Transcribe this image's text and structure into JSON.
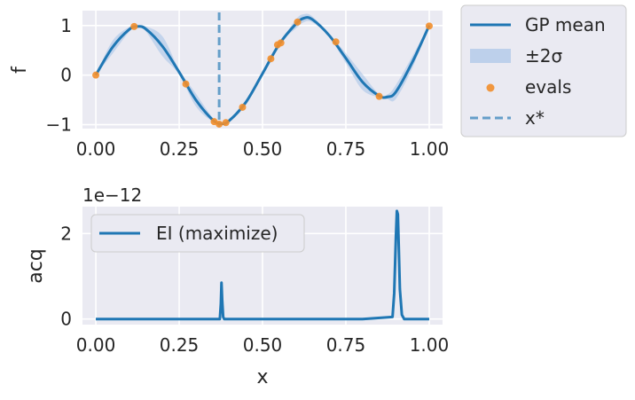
{
  "chart_data": [
    {
      "type": "line",
      "title": "",
      "xlabel": "",
      "ylabel": "f",
      "xlim": [
        -0.04,
        1.04
      ],
      "ylim": [
        -1.08,
        1.3
      ],
      "grid": true,
      "xticks": [
        0.0,
        0.25,
        0.5,
        0.75,
        1.0
      ],
      "xtick_labels": [
        "0.00",
        "0.25",
        "0.50",
        "0.75",
        "1.00"
      ],
      "yticks": [
        -1,
        0,
        1
      ],
      "ytick_labels": [
        "−1",
        "0",
        "1"
      ],
      "legend_placement": "outside-right-top",
      "legend": [
        {
          "key": "gp_mean",
          "label": "GP mean"
        },
        {
          "key": "band",
          "label": "±2σ"
        },
        {
          "key": "evals",
          "label": "evals"
        },
        {
          "key": "xstar",
          "label": "x*"
        }
      ],
      "series": [
        {
          "key": "gp_mean",
          "type": "line",
          "color": "#1f77b4",
          "x": [
            0.0,
            0.05,
            0.1,
            0.125,
            0.15,
            0.2,
            0.25,
            0.3,
            0.35,
            0.375,
            0.4,
            0.45,
            0.5,
            0.55,
            0.6,
            0.625,
            0.65,
            0.7,
            0.75,
            0.8,
            0.85,
            0.875,
            0.9,
            0.95,
            1.0
          ],
          "y": [
            0.0,
            0.56,
            0.92,
            0.98,
            0.93,
            0.58,
            0.06,
            -0.5,
            -0.9,
            -0.98,
            -0.92,
            -0.55,
            0.03,
            0.62,
            1.03,
            1.15,
            1.12,
            0.8,
            0.34,
            -0.14,
            -0.42,
            -0.44,
            -0.34,
            0.27,
            1.0
          ]
        },
        {
          "key": "band",
          "type": "area",
          "color": "#aec7e8",
          "x": [
            0.0,
            0.05,
            0.1,
            0.125,
            0.15,
            0.2,
            0.25,
            0.3,
            0.35,
            0.375,
            0.4,
            0.45,
            0.5,
            0.55,
            0.6,
            0.625,
            0.65,
            0.7,
            0.75,
            0.8,
            0.85,
            0.875,
            0.9,
            0.95,
            1.0
          ],
          "sigma2": [
            0.0,
            0.13,
            0.05,
            0.0,
            0.05,
            0.2,
            0.05,
            0.13,
            0.04,
            0.0,
            0.03,
            0.05,
            0.04,
            0.0,
            0.09,
            0.08,
            0.06,
            0.03,
            0.1,
            0.16,
            0.03,
            0.05,
            0.14,
            0.12,
            0.0
          ]
        },
        {
          "key": "evals",
          "type": "scatter",
          "color": "#f28e2b",
          "x": [
            0.0,
            0.115,
            0.27,
            0.355,
            0.37,
            0.39,
            0.44,
            0.525,
            0.545,
            0.555,
            0.605,
            0.72,
            0.85,
            1.0
          ],
          "y": [
            0.0,
            0.98,
            -0.18,
            -0.94,
            -0.99,
            -0.96,
            -0.65,
            0.33,
            0.61,
            0.65,
            1.07,
            0.67,
            -0.43,
            0.99
          ]
        },
        {
          "key": "xstar",
          "type": "vline",
          "color": "#1f77b4",
          "x": 0.37
        }
      ]
    },
    {
      "type": "line",
      "title": "",
      "xlabel": "x",
      "ylabel": "acq",
      "offset_text": "1e−12",
      "xlim": [
        -0.04,
        1.04
      ],
      "ylim": [
        -0.13,
        2.63
      ],
      "grid": true,
      "xticks": [
        0.0,
        0.25,
        0.5,
        0.75,
        1.0
      ],
      "xtick_labels": [
        "0.00",
        "0.25",
        "0.50",
        "0.75",
        "1.00"
      ],
      "yticks": [
        0,
        2
      ],
      "ytick_labels": [
        "0",
        "2"
      ],
      "legend_placement": "upper-left",
      "legend": [
        {
          "key": "ei",
          "label": "EI (maximize)"
        }
      ],
      "series": [
        {
          "key": "ei",
          "type": "line",
          "color": "#1f77b4",
          "x": [
            0.0,
            0.372,
            0.375,
            0.377,
            0.379,
            0.382,
            0.385,
            0.8,
            0.89,
            0.895,
            0.9,
            0.903,
            0.906,
            0.909,
            0.912,
            0.918,
            0.925,
            1.0
          ],
          "y": [
            0.0,
            0.0,
            0.35,
            0.85,
            0.45,
            0.05,
            0.0,
            0.0,
            0.05,
            0.6,
            1.9,
            2.53,
            2.45,
            1.6,
            0.7,
            0.1,
            0.0,
            0.0
          ]
        }
      ]
    }
  ]
}
